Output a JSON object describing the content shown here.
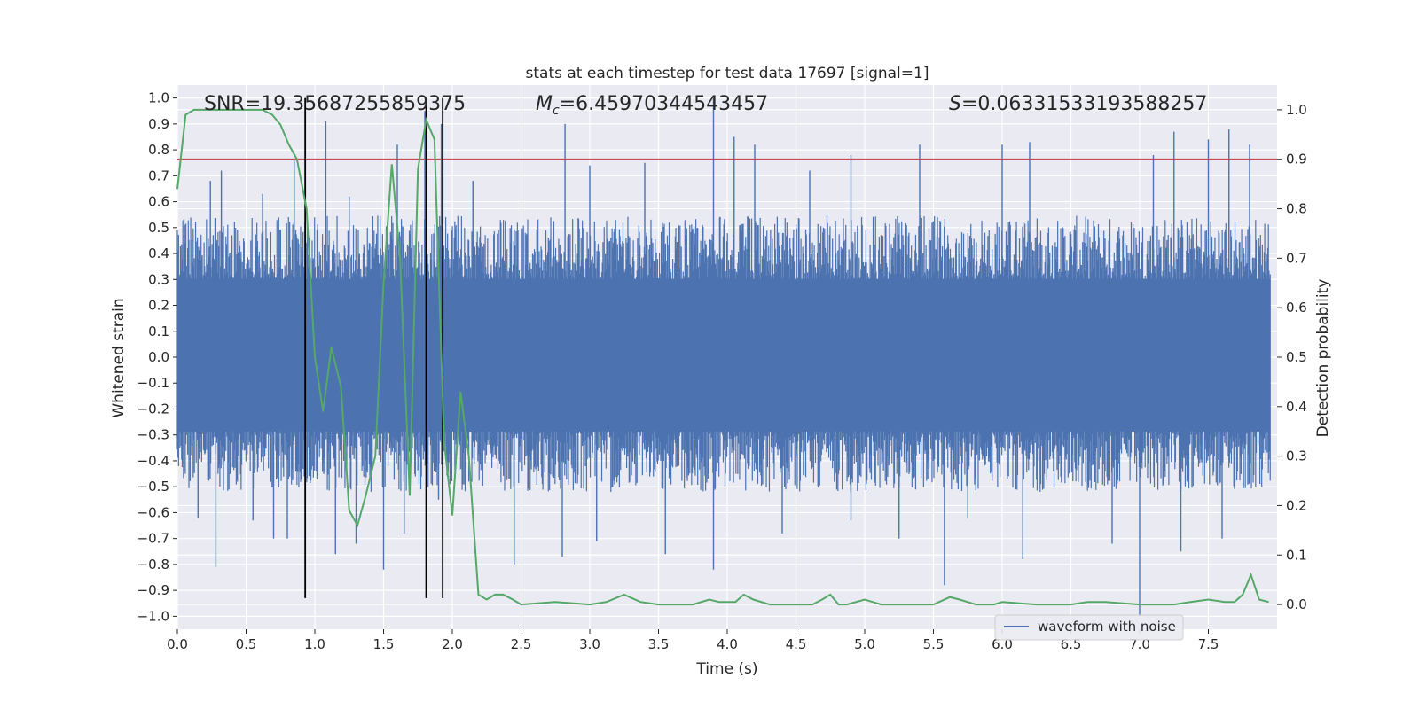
{
  "chart_data": {
    "type": "line",
    "title": "stats at each timestep for test data 17697 [signal=1]",
    "xlabel": "Time (s)",
    "ylabel_left": "Whitened strain",
    "ylabel_right": "Detection probability",
    "xlim": [
      0.0,
      8.0
    ],
    "ylim_left": [
      -1.05,
      1.05
    ],
    "ylim_right": [
      -0.05,
      1.05
    ],
    "x_ticks": [
      "0.0",
      "0.5",
      "1.0",
      "1.5",
      "2.0",
      "2.5",
      "3.0",
      "3.5",
      "4.0",
      "4.5",
      "5.0",
      "5.5",
      "6.0",
      "6.5",
      "7.0",
      "7.5"
    ],
    "x_tick_values": [
      0.0,
      0.5,
      1.0,
      1.5,
      2.0,
      2.5,
      3.0,
      3.5,
      4.0,
      4.5,
      5.0,
      5.5,
      6.0,
      6.5,
      7.0,
      7.5
    ],
    "y_left_ticks": [
      "1.0",
      "0.9",
      "0.8",
      "0.7",
      "0.6",
      "0.5",
      "0.4",
      "0.3",
      "0.2",
      "0.1",
      "0.0",
      "−0.1",
      "−0.2",
      "−0.3",
      "−0.4",
      "−0.5",
      "−0.6",
      "−0.7",
      "−0.8",
      "−0.9",
      "−1.0"
    ],
    "y_left_tick_values": [
      1.0,
      0.9,
      0.8,
      0.7,
      0.6,
      0.5,
      0.4,
      0.3,
      0.2,
      0.1,
      0.0,
      -0.1,
      -0.2,
      -0.3,
      -0.4,
      -0.5,
      -0.6,
      -0.7,
      -0.8,
      -0.9,
      -1.0
    ],
    "y_right_ticks": [
      "1.0",
      "0.9",
      "0.8",
      "0.7",
      "0.6",
      "0.5",
      "0.4",
      "0.3",
      "0.2",
      "0.1",
      "0.0"
    ],
    "y_right_tick_values": [
      1.0,
      0.9,
      0.8,
      0.7,
      0.6,
      0.5,
      0.4,
      0.3,
      0.2,
      0.1,
      0.0
    ],
    "annotations": {
      "snr": "SNR=19.35687255859375",
      "mc_symbol": "M",
      "mc_sub": "c",
      "mc_value": "=6.45970344543457",
      "s_symbol": "S",
      "s_value": "=0.06331533193588257"
    },
    "legend": {
      "entry": "waveform with noise",
      "location": "lower-right"
    },
    "threshold": {
      "value": 0.9,
      "axis": "right",
      "color": "#c44e52"
    },
    "vertical_markers": [
      0.93,
      1.81,
      1.93
    ],
    "waveform": {
      "name": "waveform with noise",
      "color": "#4c72b0",
      "envelope_pos": 0.42,
      "envelope_neg": -0.4,
      "spikes_pos": [
        [
          0.24,
          0.68
        ],
        [
          0.32,
          0.72
        ],
        [
          0.62,
          0.63
        ],
        [
          0.85,
          0.76
        ],
        [
          1.08,
          0.91
        ],
        [
          1.25,
          0.62
        ],
        [
          1.6,
          0.82
        ],
        [
          1.8,
          0.95
        ],
        [
          1.92,
          0.9
        ],
        [
          2.15,
          0.68
        ],
        [
          2.82,
          0.9
        ],
        [
          3.0,
          0.74
        ],
        [
          3.4,
          0.75
        ],
        [
          3.9,
          1.0
        ],
        [
          4.05,
          0.85
        ],
        [
          4.2,
          0.82
        ],
        [
          4.6,
          0.72
        ],
        [
          4.9,
          0.78
        ],
        [
          5.4,
          0.82
        ],
        [
          6.0,
          0.82
        ],
        [
          6.2,
          0.83
        ],
        [
          7.1,
          0.78
        ],
        [
          7.25,
          0.87
        ],
        [
          7.5,
          0.84
        ],
        [
          7.65,
          0.88
        ],
        [
          7.8,
          0.82
        ]
      ],
      "spikes_neg": [
        [
          0.15,
          -0.62
        ],
        [
          0.28,
          -0.81
        ],
        [
          0.55,
          -0.63
        ],
        [
          0.7,
          -0.7
        ],
        [
          0.8,
          -0.7
        ],
        [
          1.15,
          -0.76
        ],
        [
          1.3,
          -0.72
        ],
        [
          1.5,
          -0.82
        ],
        [
          1.65,
          -0.68
        ],
        [
          1.9,
          -0.55
        ],
        [
          2.45,
          -0.8
        ],
        [
          2.8,
          -0.77
        ],
        [
          3.05,
          -0.71
        ],
        [
          3.55,
          -0.76
        ],
        [
          3.9,
          -0.82
        ],
        [
          4.4,
          -0.68
        ],
        [
          4.9,
          -0.63
        ],
        [
          5.25,
          -0.7
        ],
        [
          5.58,
          -0.88
        ],
        [
          5.75,
          -0.62
        ],
        [
          6.15,
          -0.78
        ],
        [
          6.8,
          -0.72
        ],
        [
          7.0,
          -1.0
        ],
        [
          7.3,
          -0.75
        ],
        [
          7.6,
          -0.7
        ]
      ]
    },
    "probability": {
      "name": "detection probability",
      "color": "#55a868",
      "x": [
        0.0,
        0.06,
        0.12,
        0.19,
        0.25,
        0.31,
        0.37,
        0.44,
        0.5,
        0.56,
        0.62,
        0.69,
        0.75,
        0.81,
        0.87,
        0.94,
        1.0,
        1.06,
        1.12,
        1.19,
        1.25,
        1.31,
        1.37,
        1.44,
        1.5,
        1.56,
        1.62,
        1.69,
        1.75,
        1.81,
        1.87,
        1.94,
        2.0,
        2.06,
        2.12,
        2.19,
        2.25,
        2.31,
        2.37,
        2.44,
        2.5,
        2.75,
        3.0,
        3.12,
        3.25,
        3.37,
        3.5,
        3.75,
        3.87,
        3.94,
        4.06,
        4.12,
        4.19,
        4.31,
        4.5,
        4.62,
        4.69,
        4.75,
        4.81,
        4.87,
        5.0,
        5.06,
        5.12,
        5.25,
        5.5,
        5.62,
        5.69,
        5.75,
        5.81,
        5.94,
        6.0,
        6.25,
        6.5,
        6.62,
        6.75,
        7.0,
        7.25,
        7.37,
        7.5,
        7.62,
        7.69,
        7.75,
        7.81,
        7.87,
        7.94
      ],
      "y": [
        0.84,
        0.99,
        1.0,
        1.0,
        1.0,
        1.0,
        1.0,
        1.0,
        1.0,
        1.0,
        1.0,
        0.99,
        0.97,
        0.93,
        0.9,
        0.8,
        0.5,
        0.39,
        0.52,
        0.44,
        0.19,
        0.16,
        0.22,
        0.3,
        0.65,
        0.89,
        0.7,
        0.22,
        0.88,
        0.98,
        0.94,
        0.33,
        0.18,
        0.43,
        0.3,
        0.02,
        0.01,
        0.02,
        0.02,
        0.01,
        0.0,
        0.005,
        0.0,
        0.005,
        0.02,
        0.005,
        0.0,
        0.0,
        0.01,
        0.005,
        0.005,
        0.02,
        0.01,
        0.0,
        0.0,
        0.0,
        0.01,
        0.02,
        0.0,
        0.0,
        0.01,
        0.005,
        0.0,
        0.0,
        0.0,
        0.015,
        0.01,
        0.005,
        0.0,
        0.0,
        0.005,
        0.0,
        0.0,
        0.005,
        0.005,
        0.0,
        0.0,
        0.005,
        0.01,
        0.005,
        0.005,
        0.02,
        0.06,
        0.01,
        0.005
      ]
    }
  }
}
